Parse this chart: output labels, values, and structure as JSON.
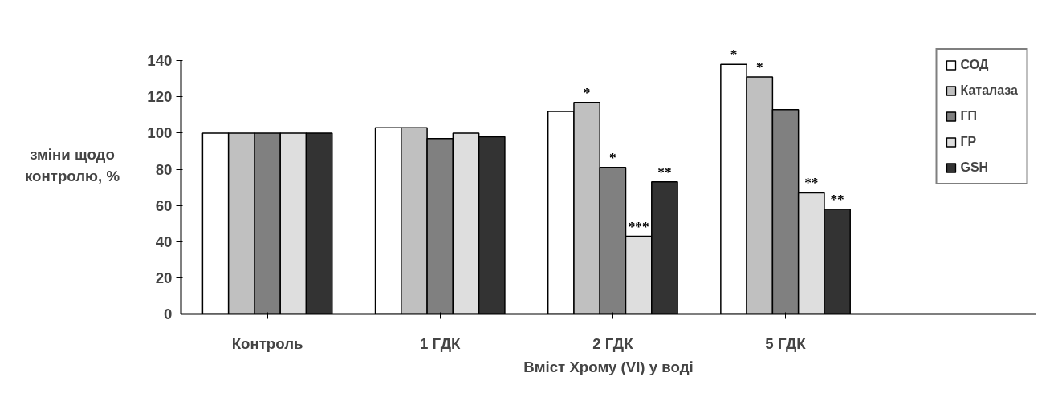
{
  "chart_data": {
    "type": "bar",
    "xlabel": "Вміст Хрому (VI) у воді",
    "ylabel": "зміни щодо контролю, %",
    "categories": [
      "Контроль",
      "1 ГДК",
      "2 ГДК",
      "5 ГДК"
    ],
    "series": [
      {
        "name": "СОД",
        "color": "#ffffff",
        "values": [
          100,
          103,
          112,
          138
        ],
        "value_labels": [
          null,
          null,
          null,
          "*"
        ]
      },
      {
        "name": "Каталаза",
        "color": "#c0c0c0",
        "values": [
          100,
          103,
          117,
          131
        ],
        "value_labels": [
          null,
          null,
          "*",
          "*"
        ]
      },
      {
        "name": "ГП",
        "color": "#808080",
        "values": [
          100,
          97,
          81,
          113
        ],
        "value_labels": [
          null,
          null,
          "*",
          null
        ]
      },
      {
        "name": "ГР",
        "color": "#dedede",
        "values": [
          100,
          100,
          43,
          67
        ],
        "value_labels": [
          null,
          null,
          "***",
          "**"
        ]
      },
      {
        "name": "GSH",
        "color": "#333333",
        "values": [
          100,
          98,
          73,
          58
        ],
        "value_labels": [
          null,
          null,
          "**",
          "**"
        ]
      }
    ],
    "ylim": [
      0,
      140
    ],
    "yticks": [
      0,
      20,
      40,
      60,
      80,
      100,
      120,
      140
    ],
    "grid": false,
    "legend": "top right"
  }
}
